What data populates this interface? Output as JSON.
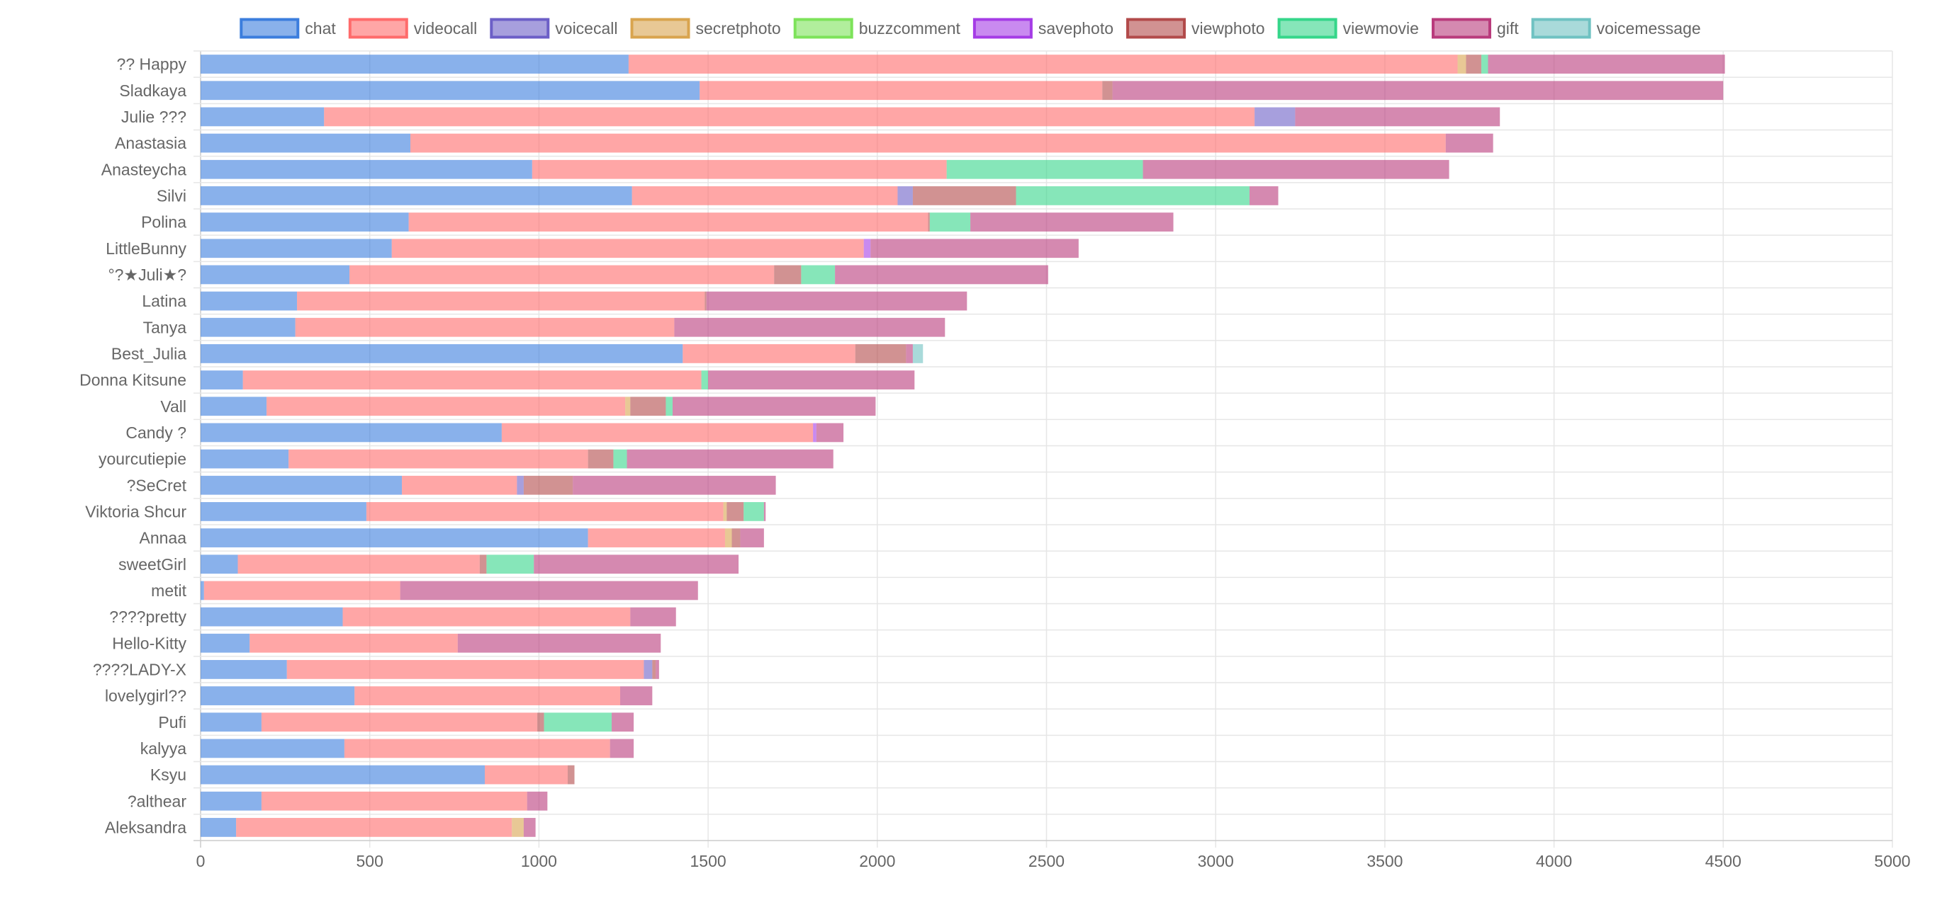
{
  "chart_data": {
    "type": "bar",
    "orientation": "horizontal",
    "stacked": true,
    "legend_position": "top",
    "grid": true,
    "xlim": [
      0,
      5000
    ],
    "x_ticks": [
      "0",
      "500",
      "1000",
      "1500",
      "2000",
      "2500",
      "3000",
      "3500",
      "4000",
      "4500",
      "5000"
    ],
    "categories": [
      "?? Happy",
      "Sladkaya",
      "Julie ???",
      "Anastasia",
      "Anasteycha",
      "Silvi",
      "Polina",
      "LittleBunny",
      "°?★Juli★?",
      "Latina",
      "Tanya",
      "Best_Julia",
      "Donna Kitsune",
      "Vall",
      "Candy ?",
      "yourcutiepie",
      "?SeCret",
      "Viktoria Shcur",
      "Annaa",
      "sweetGirl",
      "metit",
      "????pretty",
      "Hello-Kitty",
      "????LADY-X",
      "lovelygirl??",
      "Pufi",
      "kalyya",
      "Ksyu",
      "?althear",
      "Aleksandra"
    ],
    "series": [
      {
        "name": "chat",
        "color": "#3b7ddd",
        "values": [
          1265,
          1475,
          365,
          620,
          980,
          1275,
          615,
          565,
          440,
          285,
          280,
          1425,
          125,
          195,
          890,
          260,
          595,
          490,
          1145,
          110,
          10,
          420,
          145,
          255,
          455,
          180,
          425,
          840,
          180,
          105
        ]
      },
      {
        "name": "videocall",
        "color": "#ff6b6b",
        "values": [
          2450,
          1190,
          2750,
          3060,
          1225,
          785,
          1535,
          1395,
          1255,
          1205,
          1120,
          510,
          1355,
          1060,
          920,
          885,
          340,
          1055,
          405,
          715,
          580,
          850,
          615,
          1055,
          785,
          815,
          785,
          245,
          785,
          815
        ]
      },
      {
        "name": "voicecall",
        "color": "#6c5fc7",
        "values": [
          0,
          0,
          120,
          0,
          0,
          45,
          0,
          0,
          0,
          0,
          0,
          0,
          0,
          0,
          0,
          0,
          20,
          0,
          0,
          0,
          0,
          0,
          0,
          25,
          0,
          0,
          0,
          0,
          0,
          0
        ]
      },
      {
        "name": "secretphoto",
        "color": "#d9a44e",
        "values": [
          25,
          0,
          0,
          0,
          0,
          0,
          0,
          0,
          0,
          0,
          0,
          0,
          0,
          15,
          0,
          0,
          0,
          10,
          20,
          0,
          0,
          0,
          0,
          0,
          0,
          0,
          0,
          0,
          0,
          35
        ]
      },
      {
        "name": "buzzcomment",
        "color": "#7de35a",
        "values": [
          0,
          0,
          0,
          0,
          0,
          0,
          0,
          0,
          0,
          0,
          0,
          0,
          0,
          0,
          0,
          0,
          0,
          0,
          0,
          0,
          0,
          0,
          0,
          0,
          0,
          0,
          0,
          0,
          0,
          0
        ]
      },
      {
        "name": "savephoto",
        "color": "#a53ce6",
        "values": [
          0,
          0,
          0,
          0,
          0,
          0,
          0,
          20,
          0,
          0,
          0,
          0,
          0,
          0,
          10,
          0,
          0,
          0,
          0,
          0,
          0,
          0,
          0,
          0,
          0,
          0,
          0,
          0,
          0,
          0
        ]
      },
      {
        "name": "viewphoto",
        "color": "#b24a4a",
        "values": [
          45,
          30,
          0,
          0,
          0,
          305,
          5,
          0,
          80,
          5,
          0,
          150,
          0,
          105,
          0,
          75,
          145,
          50,
          25,
          20,
          0,
          0,
          0,
          10,
          0,
          20,
          0,
          20,
          0,
          0
        ]
      },
      {
        "name": "viewmovie",
        "color": "#35d68a",
        "values": [
          20,
          0,
          0,
          0,
          580,
          690,
          120,
          0,
          100,
          0,
          0,
          0,
          20,
          20,
          0,
          40,
          0,
          60,
          0,
          140,
          0,
          0,
          0,
          0,
          0,
          200,
          0,
          0,
          0,
          0
        ]
      },
      {
        "name": "gift",
        "color": "#b93b7c",
        "values": [
          700,
          1805,
          605,
          140,
          905,
          85,
          600,
          615,
          630,
          770,
          800,
          20,
          610,
          600,
          80,
          610,
          600,
          5,
          70,
          605,
          880,
          135,
          600,
          10,
          95,
          65,
          70,
          0,
          60,
          35
        ]
      },
      {
        "name": "voicemessage",
        "color": "#6fc2c2",
        "values": [
          0,
          0,
          0,
          0,
          0,
          0,
          0,
          0,
          0,
          0,
          0,
          30,
          0,
          0,
          0,
          0,
          0,
          0,
          0,
          0,
          0,
          0,
          0,
          0,
          0,
          0,
          0,
          0,
          0,
          0
        ]
      }
    ]
  }
}
